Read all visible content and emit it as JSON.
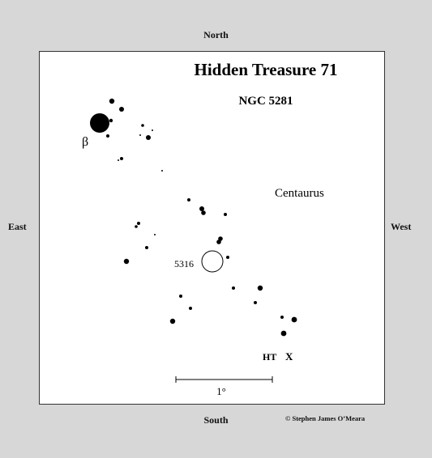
{
  "compass": {
    "north": "North",
    "south": "South",
    "east": "East",
    "west": "West"
  },
  "credit": "© Stephen James O’Meara",
  "chart": {
    "title": "Hidden Treasure 71",
    "subtitle": "NGC 5281",
    "constellation": "Centaurus",
    "beta_label": "β",
    "cluster_label": "5316",
    "ht_label": "HT",
    "x_marker": "X",
    "scale_label": "1°"
  },
  "colors": {
    "background": "#d7d7d7",
    "chart_bg": "#ffffff",
    "ink": "#000000"
  }
}
